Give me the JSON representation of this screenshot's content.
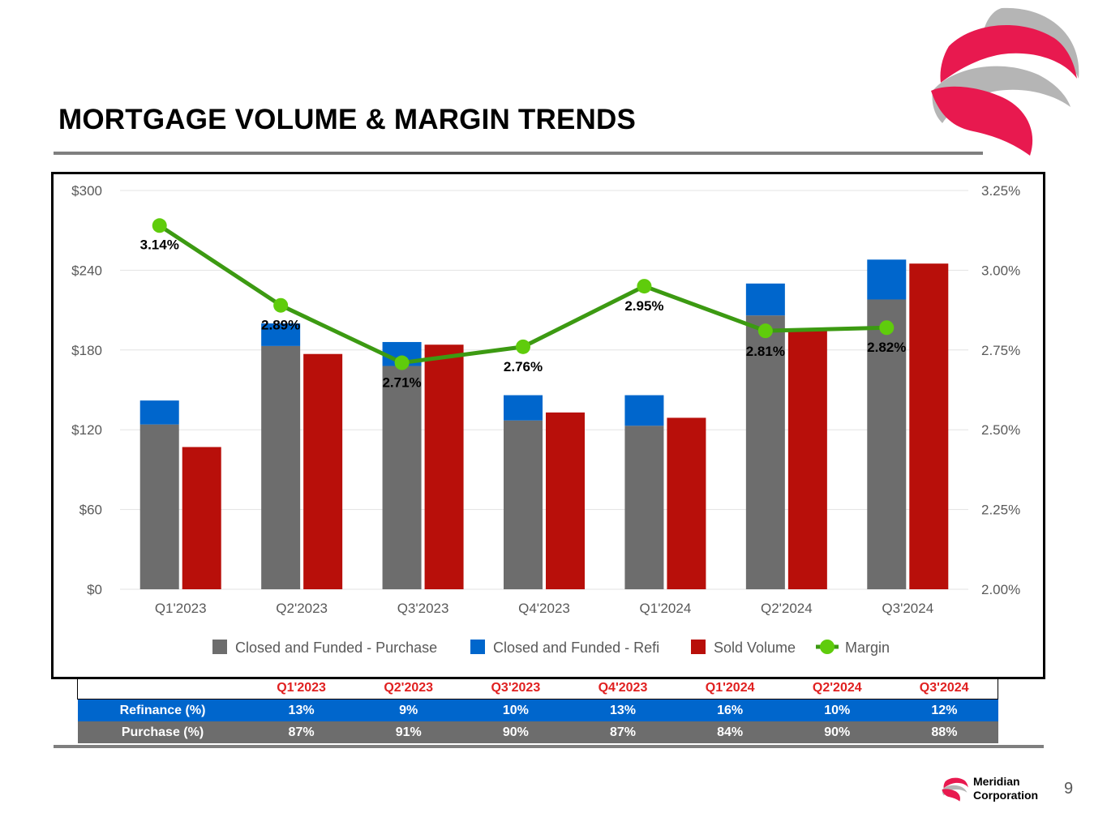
{
  "page": {
    "title": "MORTGAGE VOLUME & MARGIN TRENDS",
    "number": "9"
  },
  "brand": {
    "line1": "Meridian",
    "line2": "Corporation"
  },
  "colors": {
    "purchase": "#6d6d6d",
    "refi": "#0066cc",
    "sold": "#b80f0a",
    "margin": "#3c9a12",
    "margin_marker": "#5fcc0c",
    "logo_red": "#e8194f",
    "logo_gray": "#b5b5b5"
  },
  "chart_data": {
    "type": "bar",
    "categories": [
      "Q1'2023",
      "Q2'2023",
      "Q3'2023",
      "Q4'2023",
      "Q1'2024",
      "Q2'2024",
      "Q3'2024"
    ],
    "series": [
      {
        "name": "Closed and Funded - Purchase",
        "stack": "closed",
        "values": [
          124,
          183,
          168,
          127,
          123,
          206,
          218
        ]
      },
      {
        "name": "Closed and Funded - Refi",
        "stack": "closed",
        "values": [
          18,
          17,
          18,
          19,
          23,
          24,
          30
        ]
      },
      {
        "name": "Sold Volume",
        "stack": "sold",
        "values": [
          107,
          177,
          184,
          133,
          129,
          196,
          245
        ]
      },
      {
        "name": "Margin",
        "type": "line",
        "axis": "right",
        "values": [
          3.14,
          2.89,
          2.71,
          2.76,
          2.95,
          2.81,
          2.82
        ],
        "labels": [
          "3.14%",
          "2.89%",
          "2.71%",
          "2.76%",
          "2.95%",
          "2.81%",
          "2.82%"
        ]
      }
    ],
    "ylim": [
      0,
      300
    ],
    "yticks": [
      0,
      60,
      120,
      180,
      240,
      300
    ],
    "ytick_labels": [
      "$0",
      "$60",
      "$120",
      "$180",
      "$240",
      "$300"
    ],
    "y2lim": [
      2.0,
      3.25
    ],
    "y2ticks": [
      2.0,
      2.25,
      2.5,
      2.75,
      3.0,
      3.25
    ],
    "y2tick_labels": [
      "2.00%",
      "2.25%",
      "2.50%",
      "2.75%",
      "3.00%",
      "3.25%"
    ],
    "legend_position": "bottom",
    "grid": true
  },
  "table": {
    "headers": [
      "",
      "Q1'2023",
      "Q2'2023",
      "Q3'2023",
      "Q4'2023",
      "Q1'2024",
      "Q2'2024",
      "Q3'2024"
    ],
    "rows": [
      {
        "label": "Refinance (%)",
        "values": [
          "13%",
          "9%",
          "10%",
          "13%",
          "16%",
          "10%",
          "12%"
        ]
      },
      {
        "label": "Purchase (%)",
        "values": [
          "87%",
          "91%",
          "90%",
          "87%",
          "84%",
          "90%",
          "88%"
        ]
      }
    ]
  }
}
